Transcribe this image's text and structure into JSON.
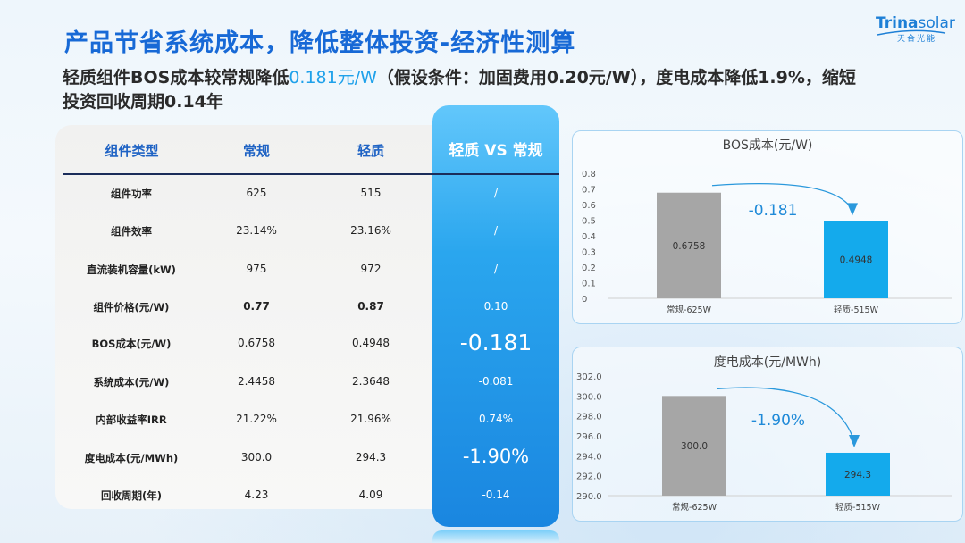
{
  "header": {
    "title": "产品节省系统成本，降低整体投资-经济性测算",
    "subtitle_part1": "轻质组件BOS成本较常规降低",
    "subtitle_highlight": "0.181元/W",
    "subtitle_part2": "（假设条件：加固费用0.20元/W），度电成本降低1.9%，缩短投资回收周期0.14年"
  },
  "logo": {
    "brand_bold": "Trina",
    "brand_light": "solar",
    "cn": "天合光能"
  },
  "table": {
    "headers": [
      "组件类型",
      "常规",
      "轻质",
      "轻质 VS 常规"
    ],
    "rows": [
      {
        "name": "组件功率",
        "regular": "625",
        "light": "515",
        "diff": "/"
      },
      {
        "name": "组件效率",
        "regular": "23.14%",
        "light": "23.16%",
        "diff": "/"
      },
      {
        "name": "直流装机容量(kW)",
        "regular": "975",
        "light": "972",
        "diff": "/"
      },
      {
        "name": "组件价格(元/W)",
        "regular": "0.77",
        "light": "0.87",
        "diff": "0.10"
      },
      {
        "name": "BOS成本(元/W)",
        "regular": "0.6758",
        "light": "0.4948",
        "diff": "-0.181"
      },
      {
        "name": "系统成本(元/W)",
        "regular": "2.4458",
        "light": "2.3648",
        "diff": "-0.081"
      },
      {
        "name": "内部收益率IRR",
        "regular": "21.22%",
        "light": "21.96%",
        "diff": "0.74%"
      },
      {
        "name": "度电成本(元/MWh)",
        "regular": "300.0",
        "light": "294.3",
        "diff": "-1.90%"
      },
      {
        "name": "回收周期(年)",
        "regular": "4.23",
        "light": "4.09",
        "diff": "-0.14"
      }
    ]
  },
  "chart_data": [
    {
      "type": "bar",
      "title": "BOS成本(元/W)",
      "categories": [
        "常规-625W",
        "轻质-515W"
      ],
      "values": [
        0.6758,
        0.4948
      ],
      "value_labels": [
        "0.6758",
        "0.4948"
      ],
      "ylim": [
        0,
        0.8
      ],
      "yticks": [
        "0",
        "0.1",
        "0.2",
        "0.3",
        "0.4",
        "0.5",
        "0.6",
        "0.7",
        "0.8"
      ],
      "annotation": "-0.181",
      "colors": [
        "#a6a6a6",
        "#14aaec"
      ]
    },
    {
      "type": "bar",
      "title": "度电成本(元/MWh)",
      "categories": [
        "常规-625W",
        "轻质-515W"
      ],
      "values": [
        300.0,
        294.3
      ],
      "value_labels": [
        "300.0",
        "294.3"
      ],
      "ylim": [
        290,
        302
      ],
      "yticks": [
        "290.0",
        "292.0",
        "294.0",
        "296.0",
        "298.0",
        "300.0",
        "302.0"
      ],
      "annotation": "-1.90%",
      "colors": [
        "#a6a6a6",
        "#14aaec"
      ]
    }
  ]
}
